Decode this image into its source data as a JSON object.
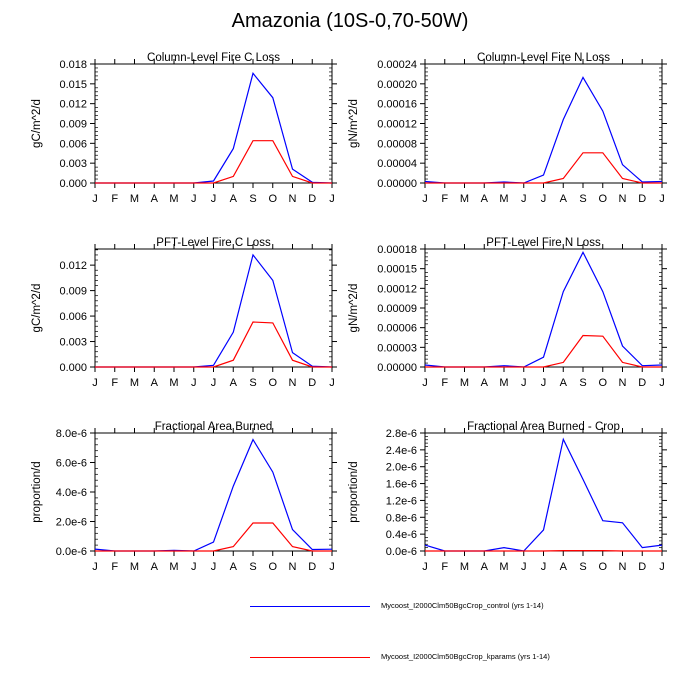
{
  "title": "Amazonia (10S-0,70-50W)",
  "months": [
    "J",
    "F",
    "M",
    "A",
    "M",
    "J",
    "J",
    "A",
    "S",
    "O",
    "N",
    "D",
    "J"
  ],
  "series_colors": {
    "control": "#0000ff",
    "kparams": "#ff0000"
  },
  "legend": [
    {
      "label": "Mycoost_I2000Clm50BgcCrop_control (yrs 1-14)",
      "color": "#0000ff"
    },
    {
      "label": "Mycoost_I2000Clm50BgcCrop_kparams (yrs 1-14)",
      "color": "#ff0000"
    }
  ],
  "chart_data": [
    {
      "type": "line",
      "title": "Column-Level Fire C Loss",
      "ylabel": "gC/m^2/d",
      "xlabel": "",
      "ylim": [
        0,
        0.018
      ],
      "yticks": [
        0,
        0.003,
        0.006,
        0.009,
        0.012,
        0.015,
        0.018
      ],
      "ytick_labels": [
        "0.000",
        "0.003",
        "0.006",
        "0.009",
        "0.012",
        "0.015",
        "0.018"
      ],
      "series": [
        {
          "name": "Mycoost_I2000Clm50BgcCrop_control (yrs 1-14)",
          "values": [
            0,
            0,
            0,
            0,
            0,
            0,
            0.0003,
            0.0052,
            0.0166,
            0.0129,
            0.0021,
            0.0001,
            0
          ]
        },
        {
          "name": "Mycoost_I2000Clm50BgcCrop_kparams (yrs 1-14)",
          "values": [
            0,
            0,
            0,
            0,
            0,
            0,
            0,
            0.001,
            0.0064,
            0.0064,
            0.001,
            0,
            0
          ]
        }
      ]
    },
    {
      "type": "line",
      "title": "Column-Level Fire N Loss",
      "ylabel": "gN/m^2/d",
      "xlabel": "",
      "ylim": [
        0,
        0.00024
      ],
      "yticks": [
        0,
        4e-05,
        8e-05,
        0.00012,
        0.00016,
        0.0002,
        0.00024
      ],
      "ytick_labels": [
        "0.00000",
        "0.00004",
        "0.00008",
        "0.00012",
        "0.00016",
        "0.00020",
        "0.00024"
      ],
      "series": [
        {
          "name": "Mycoost_I2000Clm50BgcCrop_control (yrs 1-14)",
          "values": [
            3e-06,
            0,
            0,
            0,
            2e-06,
            0,
            1.6e-05,
            0.000128,
            0.000213,
            0.000145,
            3.7e-05,
            2e-06,
            3e-06
          ]
        },
        {
          "name": "Mycoost_I2000Clm50BgcCrop_kparams (yrs 1-14)",
          "values": [
            0,
            0,
            0,
            0,
            0,
            0,
            0,
            9e-06,
            6.1e-05,
            6.1e-05,
            9e-06,
            0,
            0
          ]
        }
      ]
    },
    {
      "type": "line",
      "title": "PFT-Level Fire C Loss",
      "ylabel": "gC/m^2/d",
      "xlabel": "",
      "ylim": [
        0,
        0.0139
      ],
      "yticks": [
        0,
        0.003,
        0.006,
        0.009,
        0.012
      ],
      "ytick_labels": [
        "0.000",
        "0.003",
        "0.006",
        "0.009",
        "0.012"
      ],
      "series": [
        {
          "name": "Mycoost_I2000Clm50BgcCrop_control (yrs 1-14)",
          "values": [
            0,
            0,
            0,
            0,
            0,
            0,
            0.0002,
            0.0041,
            0.0132,
            0.0102,
            0.0017,
            0.0001,
            0
          ]
        },
        {
          "name": "Mycoost_I2000Clm50BgcCrop_kparams (yrs 1-14)",
          "values": [
            0,
            0,
            0,
            0,
            0,
            0,
            0,
            0.0008,
            0.0053,
            0.0052,
            0.0008,
            0,
            0
          ]
        }
      ]
    },
    {
      "type": "line",
      "title": "PFT-Level Fire N Loss",
      "ylabel": "gN/m^2/d",
      "xlabel": "",
      "ylim": [
        0,
        0.00018
      ],
      "yticks": [
        0,
        3e-05,
        6e-05,
        9e-05,
        0.00012,
        0.00015,
        0.00018
      ],
      "ytick_labels": [
        "0.00000",
        "0.00003",
        "0.00006",
        "0.00009",
        "0.00012",
        "0.00015",
        "0.00018"
      ],
      "series": [
        {
          "name": "Mycoost_I2000Clm50BgcCrop_control (yrs 1-14)",
          "values": [
            3e-06,
            0,
            0,
            0,
            2e-06,
            0,
            1.5e-05,
            0.000115,
            0.000175,
            0.000115,
            3.2e-05,
            2e-06,
            3e-06
          ]
        },
        {
          "name": "Mycoost_I2000Clm50BgcCrop_kparams (yrs 1-14)",
          "values": [
            0,
            0,
            0,
            0,
            0,
            0,
            0,
            7e-06,
            4.8e-05,
            4.7e-05,
            7e-06,
            0,
            0
          ]
        }
      ]
    },
    {
      "type": "line",
      "title": "Fractional Area Burned",
      "ylabel": "proportion/d",
      "xlabel": "",
      "ylim": [
        0,
        8e-06
      ],
      "yticks": [
        0,
        2e-06,
        4e-06,
        6e-06,
        8e-06
      ],
      "ytick_labels": [
        "0.0e-6",
        "2.0e-6",
        "4.0e-6",
        "6.0e-6",
        "8.0e-6"
      ],
      "series": [
        {
          "name": "Mycoost_I2000Clm50BgcCrop_control (yrs 1-14)",
          "values": [
            1.3e-07,
            0,
            0,
            0,
            5e-08,
            0,
            6e-07,
            4.4e-06,
            7.55e-06,
            5.35e-06,
            1.45e-06,
            1e-07,
            1.2e-07
          ]
        },
        {
          "name": "Mycoost_I2000Clm50BgcCrop_kparams (yrs 1-14)",
          "values": [
            0,
            0,
            0,
            0,
            0,
            0,
            0,
            3e-07,
            1.9e-06,
            1.9e-06,
            3e-07,
            0,
            0
          ]
        }
      ]
    },
    {
      "type": "line",
      "title": "Fractional Area Burned - Crop",
      "ylabel": "proportion/d",
      "xlabel": "",
      "ylim": [
        0,
        2.8e-06
      ],
      "yticks": [
        0,
        4e-07,
        8e-07,
        1.2e-06,
        1.6e-06,
        2e-06,
        2.4e-06,
        2.8e-06
      ],
      "ytick_labels": [
        "0.0e-6",
        "0.4e-6",
        "0.8e-6",
        "1.2e-6",
        "1.6e-6",
        "2.0e-6",
        "2.4e-6",
        "2.8e-6"
      ],
      "series": [
        {
          "name": "Mycoost_I2000Clm50BgcCrop_control (yrs 1-14)",
          "values": [
            1.4e-07,
            0,
            0,
            0,
            8e-08,
            0,
            5e-07,
            2.65e-06,
            1.7e-06,
            7.2e-07,
            6.7e-07,
            8e-08,
            1.4e-07
          ]
        },
        {
          "name": "Mycoost_I2000Clm50BgcCrop_kparams (yrs 1-14)",
          "values": [
            0,
            0,
            0,
            0,
            0,
            0,
            0,
            1e-08,
            1e-08,
            1e-08,
            0,
            0,
            0
          ]
        }
      ]
    }
  ]
}
